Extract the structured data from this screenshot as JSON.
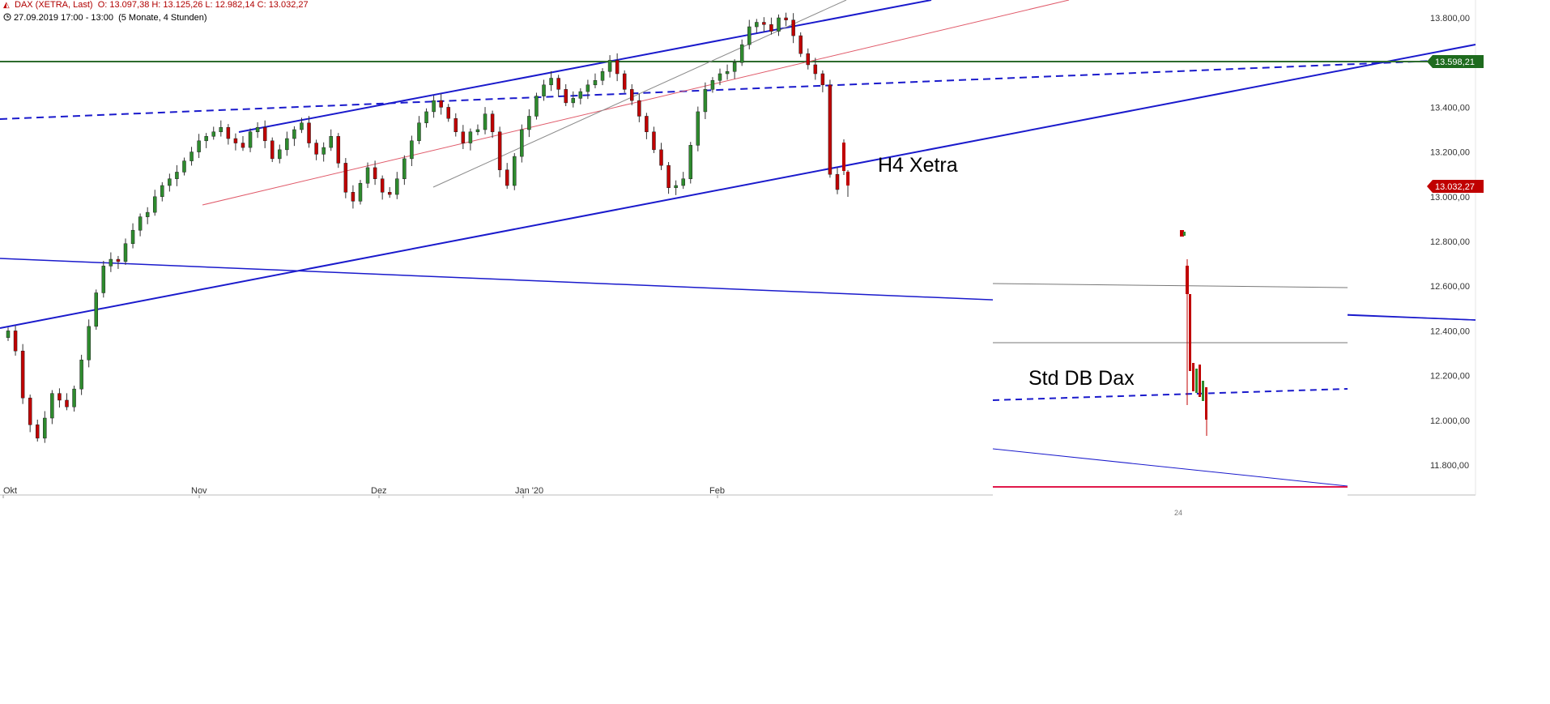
{
  "header": {
    "instrument": "DAX (XETRA, Last)",
    "ohlc": "O: 13.097,38  H: 13.125,26  L: 12.982,14  C: 13.032,27",
    "datetime": "27.09.2019 17:00 - 13:00",
    "period": "(5 Monate, 4 Stunden)"
  },
  "badges": {
    "level": "13.598,21",
    "last": "13.032,27"
  },
  "annotations": {
    "h4": "H4 Xetra",
    "std": "Std DB Dax"
  },
  "colors": {
    "up": "#2e8b2e",
    "down": "#c00000",
    "trend": "#1a1acc",
    "support_green": "#2d6b2d",
    "pink": "#e05a6a",
    "gray": "#8a8a8a",
    "badge_green": "#1e6b1e",
    "badge_red": "#c00000"
  },
  "chart_data": {
    "type": "candlestick",
    "y_ticks": [
      "13.800,00",
      "13.600,00",
      "13.400,00",
      "13.200,00",
      "13.000,00",
      "12.800,00",
      "12.600,00",
      "12.400,00",
      "12.200,00",
      "12.000,00",
      "11.800,00"
    ],
    "x_ticks": [
      "Okt",
      "Nov",
      "Dez",
      "Jan '20",
      "Feb"
    ],
    "ylim": [
      11750,
      13850
    ],
    "horizontal_level": 13598.21,
    "last_close": 13032.27,
    "closes": [
      12400,
      12310,
      12100,
      11980,
      11920,
      12010,
      12120,
      12090,
      12060,
      12140,
      12270,
      12420,
      12570,
      12690,
      12720,
      12710,
      12790,
      12850,
      12910,
      12930,
      13000,
      13050,
      13080,
      13110,
      13160,
      13200,
      13250,
      13270,
      13290,
      13310,
      13260,
      13240,
      13220,
      13290,
      13310,
      13250,
      13170,
      13210,
      13260,
      13300,
      13330,
      13240,
      13190,
      13220,
      13270,
      13150,
      13020,
      12980,
      13060,
      13130,
      13080,
      13020,
      13010,
      13080,
      13170,
      13250,
      13330,
      13380,
      13430,
      13400,
      13350,
      13290,
      13240,
      13290,
      13300,
      13370,
      13290,
      13120,
      13050,
      13180,
      13300,
      13360,
      13450,
      13500,
      13530,
      13480,
      13420,
      13440,
      13470,
      13500,
      13520,
      13560,
      13610,
      13550,
      13480,
      13430,
      13360,
      13290,
      13210,
      13140,
      13040,
      13050,
      13080,
      13230,
      13380,
      13480,
      13520,
      13550,
      13560,
      13600,
      13680,
      13760,
      13780,
      13770,
      13740,
      13800,
      13790,
      13720,
      13640,
      13590,
      13550,
      13500,
      13100,
      13032
    ]
  }
}
